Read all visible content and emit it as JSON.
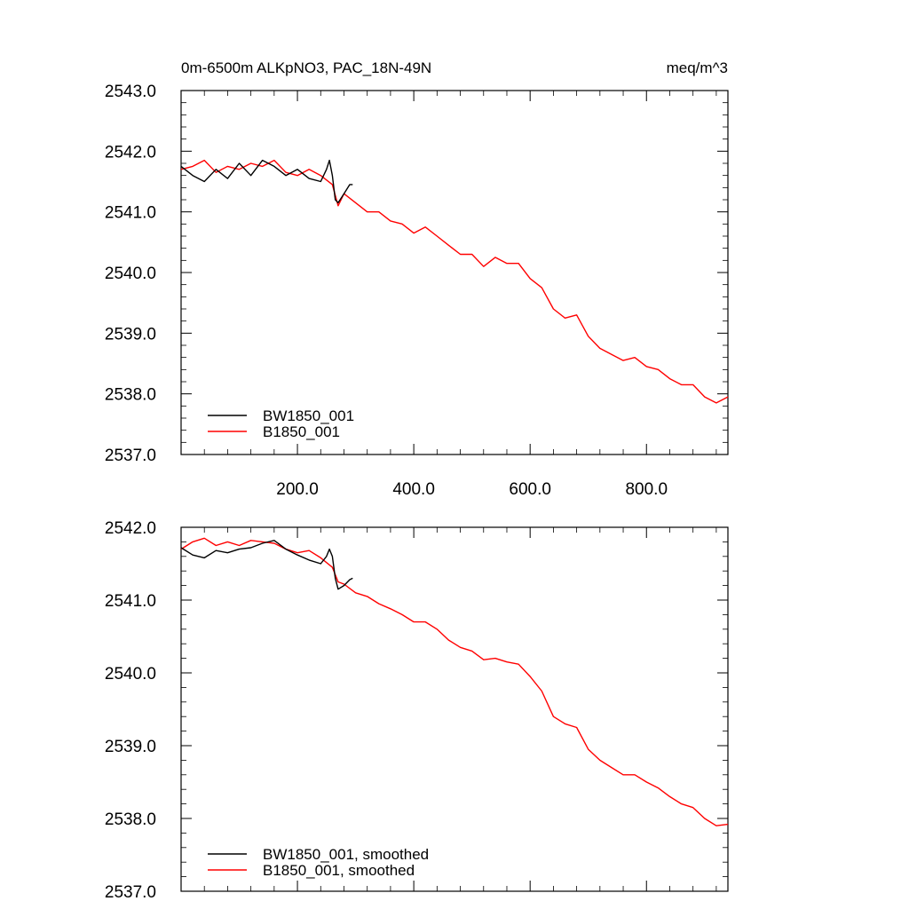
{
  "chart_data": [
    {
      "type": "line",
      "title_left": "0m-6500m ALKpNO3, PAC_18N-49N",
      "title_right": "meq/m^3",
      "xlabel": "",
      "ylabel": "",
      "xlim": [
        0,
        940
      ],
      "ylim": [
        2537.0,
        2543.0
      ],
      "x_ticks": [
        200,
        400,
        600,
        800
      ],
      "x_tick_labels": [
        "200.0",
        "400.0",
        "600.0",
        "800.0"
      ],
      "y_ticks": [
        2537,
        2538,
        2539,
        2540,
        2541,
        2542,
        2543
      ],
      "y_tick_labels": [
        "2537.0",
        "2538.0",
        "2539.0",
        "2540.0",
        "2541.0",
        "2542.0",
        "2543.0"
      ],
      "legend_position": "bottom-left",
      "series": [
        {
          "name": "BW1850_001",
          "color": "#000000",
          "x": [
            0,
            20,
            40,
            60,
            80,
            100,
            120,
            140,
            160,
            180,
            200,
            220,
            240,
            250,
            255,
            260,
            265,
            270,
            280,
            290,
            295
          ],
          "y": [
            2541.75,
            2541.6,
            2541.5,
            2541.7,
            2541.55,
            2541.8,
            2541.6,
            2541.85,
            2541.75,
            2541.6,
            2541.7,
            2541.55,
            2541.5,
            2541.7,
            2541.85,
            2541.6,
            2541.2,
            2541.15,
            2541.3,
            2541.45,
            2541.45
          ]
        },
        {
          "name": "B1850_001",
          "color": "#ff0000",
          "x": [
            0,
            20,
            40,
            60,
            80,
            100,
            120,
            140,
            160,
            180,
            200,
            220,
            240,
            260,
            270,
            280,
            300,
            320,
            340,
            360,
            380,
            400,
            420,
            440,
            460,
            480,
            500,
            520,
            540,
            560,
            580,
            600,
            620,
            640,
            660,
            680,
            700,
            720,
            740,
            760,
            780,
            800,
            820,
            840,
            860,
            880,
            900,
            920,
            940
          ],
          "y": [
            2541.7,
            2541.75,
            2541.85,
            2541.65,
            2541.75,
            2541.7,
            2541.8,
            2541.75,
            2541.85,
            2541.65,
            2541.6,
            2541.7,
            2541.6,
            2541.45,
            2541.1,
            2541.3,
            2541.15,
            2541.0,
            2541.0,
            2540.85,
            2540.8,
            2540.65,
            2540.75,
            2540.6,
            2540.45,
            2540.3,
            2540.3,
            2540.1,
            2540.25,
            2540.15,
            2540.15,
            2539.9,
            2539.75,
            2539.4,
            2539.25,
            2539.3,
            2538.95,
            2538.75,
            2538.65,
            2538.55,
            2538.6,
            2538.45,
            2538.4,
            2538.25,
            2538.15,
            2538.15,
            2537.95,
            2537.85,
            2537.95
          ]
        }
      ]
    },
    {
      "type": "line",
      "xlabel": "",
      "ylabel": "",
      "xlim": [
        0,
        940
      ],
      "ylim": [
        2537.0,
        2542.0
      ],
      "x_ticks": [
        200,
        400,
        600,
        800
      ],
      "x_tick_labels": [],
      "y_ticks": [
        2537,
        2538,
        2539,
        2540,
        2541,
        2542
      ],
      "y_tick_labels": [
        "2537.0",
        "2538.0",
        "2539.0",
        "2540.0",
        "2541.0",
        "2542.0"
      ],
      "legend_position": "bottom-left",
      "series": [
        {
          "name": "BW1850_001, smoothed",
          "color": "#000000",
          "x": [
            0,
            20,
            40,
            60,
            80,
            100,
            120,
            140,
            160,
            180,
            200,
            220,
            240,
            250,
            255,
            260,
            265,
            270,
            280,
            290,
            295
          ],
          "y": [
            2541.72,
            2541.62,
            2541.58,
            2541.68,
            2541.65,
            2541.7,
            2541.72,
            2541.78,
            2541.82,
            2541.7,
            2541.62,
            2541.55,
            2541.5,
            2541.6,
            2541.7,
            2541.6,
            2541.3,
            2541.15,
            2541.2,
            2541.28,
            2541.3
          ]
        },
        {
          "name": "B1850_001, smoothed",
          "color": "#ff0000",
          "x": [
            0,
            20,
            40,
            60,
            80,
            100,
            120,
            140,
            160,
            180,
            200,
            220,
            240,
            260,
            270,
            280,
            300,
            320,
            340,
            360,
            380,
            400,
            420,
            440,
            460,
            480,
            500,
            520,
            540,
            560,
            580,
            600,
            620,
            640,
            660,
            680,
            700,
            720,
            740,
            760,
            780,
            800,
            820,
            840,
            860,
            880,
            900,
            920,
            940
          ],
          "y": [
            2541.7,
            2541.8,
            2541.85,
            2541.75,
            2541.8,
            2541.75,
            2541.82,
            2541.8,
            2541.78,
            2541.7,
            2541.65,
            2541.68,
            2541.58,
            2541.45,
            2541.25,
            2541.22,
            2541.1,
            2541.05,
            2540.95,
            2540.88,
            2540.8,
            2540.7,
            2540.7,
            2540.6,
            2540.45,
            2540.35,
            2540.3,
            2540.18,
            2540.2,
            2540.15,
            2540.12,
            2539.95,
            2539.75,
            2539.4,
            2539.3,
            2539.25,
            2538.95,
            2538.8,
            2538.7,
            2538.6,
            2538.6,
            2538.5,
            2538.42,
            2538.3,
            2538.2,
            2538.15,
            2538.0,
            2537.9,
            2537.92
          ]
        }
      ]
    }
  ]
}
